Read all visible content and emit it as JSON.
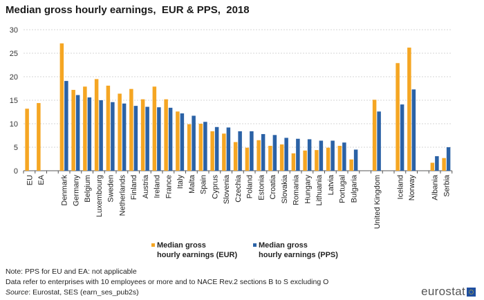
{
  "title": "Median gross hourly earnings,  EUR & PPS,  2018",
  "chart_data": {
    "type": "bar",
    "title": "Median gross hourly earnings,  EUR & PPS,  2018",
    "ylim": [
      0,
      30
    ],
    "yticks": [
      0,
      5,
      10,
      15,
      20,
      25,
      30
    ],
    "grid": true,
    "legend_position": "bottom",
    "categories": [
      "EU",
      "EA",
      "",
      "Denmark",
      "Germany",
      "Belgium",
      "Luxembourg",
      "Sweden",
      "Netherlands",
      "Finland",
      "Austria",
      "Ireland",
      "France",
      "Italy",
      "Malta",
      "Spain",
      "Cyprus",
      "Slovenia",
      "Czechia",
      "Poland",
      "Estonia",
      "Croatia",
      "Slovakia",
      "Romania",
      "Hungary",
      "Lithuania",
      "Latvia",
      "Portugal",
      "Bulgaria",
      "",
      "United Kingdom",
      "",
      "Iceland",
      "Norway",
      "",
      "Albania",
      "Serbia"
    ],
    "series": [
      {
        "name": "Median gross hourly earnings (EUR)",
        "color": "#f5a623",
        "values": [
          13.2,
          14.4,
          null,
          27.1,
          17.2,
          17.9,
          19.5,
          18.1,
          16.4,
          17.4,
          15.2,
          17.9,
          15.2,
          12.6,
          9.9,
          10.0,
          8.4,
          7.9,
          6.1,
          4.9,
          6.5,
          5.3,
          5.6,
          3.7,
          4.3,
          4.4,
          4.9,
          5.3,
          2.4,
          null,
          15.1,
          null,
          22.9,
          26.2,
          null,
          1.7,
          2.7
        ]
      },
      {
        "name": "Median gross hourly earnings (PPS)",
        "color": "#2b62a6",
        "values": [
          null,
          null,
          null,
          19.1,
          16.1,
          15.6,
          15.0,
          14.6,
          14.3,
          13.8,
          13.6,
          13.5,
          13.4,
          12.2,
          11.7,
          10.4,
          9.3,
          9.2,
          8.4,
          8.4,
          7.8,
          7.6,
          7.0,
          6.8,
          6.7,
          6.4,
          6.4,
          6.0,
          4.5,
          null,
          12.6,
          null,
          14.1,
          17.3,
          null,
          3.1,
          5.0
        ]
      }
    ]
  },
  "legend": {
    "eur_line1": "Median gross",
    "eur_line2": "hourly earnings (EUR)",
    "pps_line1": "Median gross",
    "pps_line2": "hourly earnings (PPS)"
  },
  "notes": {
    "note1": "Note: PPS for EU and EA: not applicable",
    "note2": "Data refer to enterprises with 10 employees or more and to NACE Rev.2  sections B to S excluding  O",
    "source_label": "Source",
    "source_text": ": Eurostat, SES (earn_ses_pub2s)"
  },
  "logo": {
    "text": "eurostat",
    "icon": "eu-flag-icon"
  }
}
